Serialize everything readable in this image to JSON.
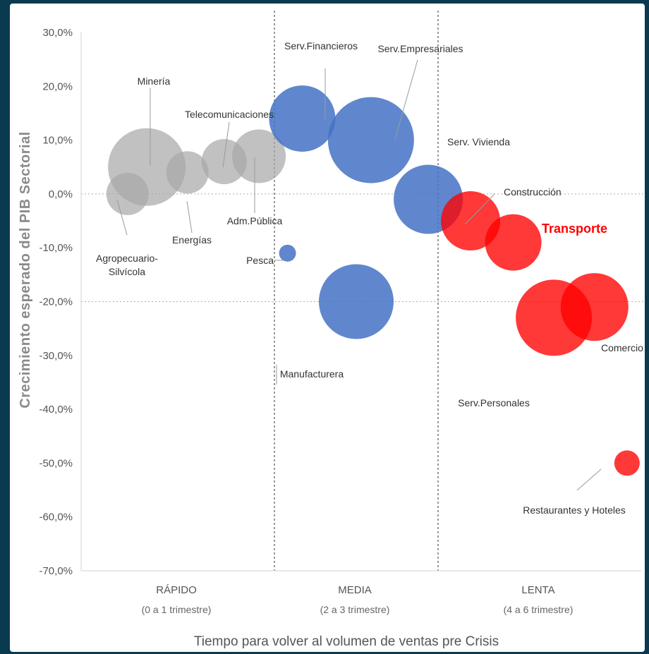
{
  "chart_data": {
    "type": "bubble",
    "ylabel": "Crecimiento esperado del PIB Sectorial",
    "xlabel": "Tiempo para volver al volumen de ventas pre Crisis",
    "ylim": [
      -0.7,
      0.3
    ],
    "y_ticks": [
      {
        "value": 0.3,
        "label": "30,0%"
      },
      {
        "value": 0.2,
        "label": "20,0%"
      },
      {
        "value": 0.1,
        "label": "10,0%"
      },
      {
        "value": 0.0,
        "label": "0,0%"
      },
      {
        "value": -0.1,
        "label": "-10,0%"
      },
      {
        "value": -0.2,
        "label": "-20,0%"
      },
      {
        "value": -0.3,
        "label": "-30,0%"
      },
      {
        "value": -0.4,
        "label": "-40,0%"
      },
      {
        "value": -0.5,
        "label": "-50,0%"
      },
      {
        "value": -0.6,
        "label": "-60,0%"
      },
      {
        "value": -0.7,
        "label": "-70,0%"
      }
    ],
    "categories": [
      {
        "label": "RÁPIDO",
        "sub": "(0 a 1 trimestre)"
      },
      {
        "label": "MEDIA",
        "sub": "(2 a 3 trimestre)"
      },
      {
        "label": "LENTA",
        "sub": "(4 a 6 trimestre)"
      }
    ],
    "reference_lines_y": [
      0.0,
      -0.2
    ],
    "colors": {
      "RÁPIDO": "#a6a6a6",
      "MEDIA": "#4472c4",
      "LENTA": "#ff0000"
    },
    "highlight_label": "Transporte",
    "bubbles": [
      {
        "name": "Agropecuario-\nSilvícola",
        "group": "RÁPIDO",
        "x": 0.24,
        "y": 0.0,
        "size": 30
      },
      {
        "name": "Minería",
        "group": "RÁPIDO",
        "x": 0.34,
        "y": 0.05,
        "size": 55
      },
      {
        "name": "Energías",
        "group": "RÁPIDO",
        "x": 0.55,
        "y": 0.04,
        "size": 30
      },
      {
        "name": "Telecomunicaciones",
        "group": "RÁPIDO",
        "x": 0.74,
        "y": 0.06,
        "size": 32
      },
      {
        "name": "Adm.Pública",
        "group": "RÁPIDO",
        "x": 0.92,
        "y": 0.07,
        "size": 38
      },
      {
        "name": "Serv.Financieros",
        "group": "MEDIA",
        "x": 1.17,
        "y": 0.14,
        "size": 47
      },
      {
        "name": "Serv.Empresariales",
        "group": "MEDIA",
        "x": 1.59,
        "y": 0.1,
        "size": 61
      },
      {
        "name": "Serv. Vivienda",
        "group": "MEDIA",
        "x": 1.94,
        "y": -0.01,
        "size": 49
      },
      {
        "name": "Pesca",
        "group": "MEDIA",
        "x": 1.08,
        "y": -0.11,
        "size": 12
      },
      {
        "name": "Manufacturera",
        "group": "MEDIA",
        "x": 1.5,
        "y": -0.2,
        "size": 53
      },
      {
        "name": "Construcción",
        "group": "LENTA",
        "x": 2.16,
        "y": -0.05,
        "size": 42
      },
      {
        "name": "Transporte",
        "group": "LENTA",
        "x": 2.37,
        "y": -0.09,
        "size": 40
      },
      {
        "name": "Serv.Personales",
        "group": "LENTA",
        "x": 2.57,
        "y": -0.23,
        "size": 54
      },
      {
        "name": "Comercio",
        "group": "LENTA",
        "x": 2.77,
        "y": -0.21,
        "size": 48
      },
      {
        "name": "Restaurantes  y Hoteles",
        "group": "LENTA",
        "x": 2.93,
        "y": -0.5,
        "size": 18
      }
    ]
  }
}
